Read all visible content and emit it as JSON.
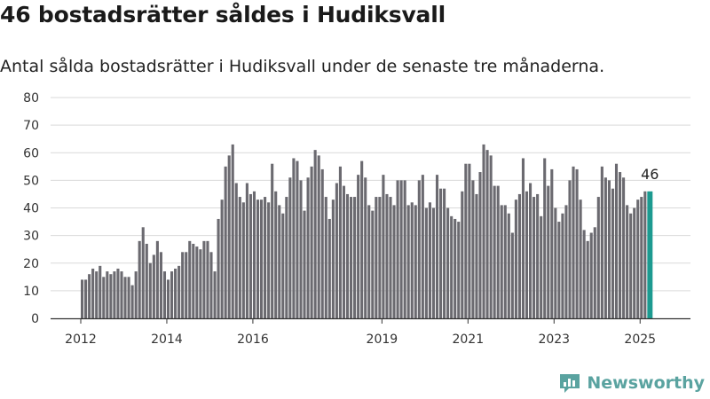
{
  "title": "46 bostadsrätter såldes i Hudiksvall",
  "subtitle": "Antal sålda bostadsrätter i Hudiksvall under de senaste tre månaderna.",
  "brand": {
    "name": "Newsworthy",
    "icon": "newsworthy-logo-icon",
    "color": "#5aa3a0"
  },
  "colors": {
    "bar": "#6b6a70",
    "highlight": "#1c9a90",
    "grid": "#d9d9d9",
    "axis": "#333333"
  },
  "chart_data": {
    "type": "bar",
    "title": "46 bostadsrätter såldes i Hudiksvall",
    "xlabel": "",
    "ylabel": "",
    "ylim": [
      0,
      80
    ],
    "yticks": [
      0,
      10,
      20,
      30,
      40,
      50,
      60,
      70,
      80
    ],
    "xticks": [
      "2012",
      "2014",
      "2016",
      "2019",
      "2021",
      "2023",
      "2025"
    ],
    "grid": true,
    "start": "2012-01",
    "highlight_last": true,
    "last_label": "46",
    "values": [
      14,
      14,
      16,
      18,
      17,
      19,
      15,
      17,
      16,
      17,
      18,
      17,
      15,
      15,
      12,
      17,
      28,
      33,
      27,
      20,
      23,
      28,
      24,
      17,
      14,
      17,
      18,
      19,
      24,
      24,
      28,
      27,
      26,
      25,
      28,
      28,
      24,
      17,
      36,
      43,
      55,
      59,
      63,
      49,
      44,
      42,
      49,
      45,
      46,
      43,
      43,
      44,
      42,
      56,
      46,
      41,
      38,
      44,
      51,
      58,
      57,
      50,
      39,
      51,
      55,
      61,
      59,
      54,
      44,
      36,
      43,
      49,
      55,
      48,
      45,
      44,
      44,
      52,
      57,
      51,
      41,
      39,
      44,
      44,
      52,
      45,
      44,
      41,
      50,
      50,
      50,
      41,
      42,
      41,
      50,
      52,
      40,
      42,
      40,
      52,
      47,
      47,
      40,
      37,
      36,
      35,
      46,
      56,
      56,
      50,
      45,
      53,
      63,
      61,
      59,
      48,
      48,
      41,
      41,
      38,
      31,
      43,
      45,
      58,
      46,
      49,
      44,
      45,
      37,
      58,
      48,
      54,
      40,
      35,
      38,
      41,
      50,
      55,
      54,
      43,
      32,
      28,
      31,
      33,
      44,
      55,
      51,
      50,
      47,
      56,
      53,
      51,
      41,
      38,
      40,
      43,
      44,
      46,
      46
    ]
  }
}
